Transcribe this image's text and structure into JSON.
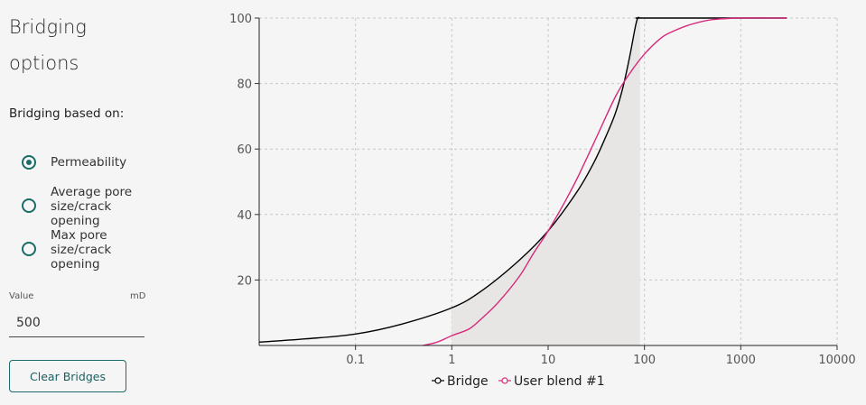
{
  "sidebar": {
    "title_line1": "Bridging",
    "title_line2": "options",
    "subtitle": "Bridging based on:",
    "options": [
      {
        "line1": "Permeability",
        "line2": "",
        "line3": "",
        "checked": true
      },
      {
        "line1": "Average pore",
        "line2": "size/crack",
        "line3": "opening",
        "checked": false
      },
      {
        "line1": "Max pore",
        "line2": "size/crack",
        "line3": "opening",
        "checked": false
      }
    ],
    "value_label": "Value",
    "unit_label": "mD",
    "value": "500",
    "clear_button": "Clear Bridges"
  },
  "colors": {
    "accent": "#1b6b6b",
    "bridge": "#000000",
    "user_blend": "#d6287a",
    "shade": "#e8e6e4"
  },
  "chart_data": {
    "type": "line",
    "x_scale": "log",
    "xlim": [
      0.01,
      10000
    ],
    "ylim": [
      0,
      100
    ],
    "x_ticks": [
      0.1,
      1,
      10,
      100,
      1000,
      10000
    ],
    "x_tick_labels": [
      "0.1",
      "1",
      "10",
      "100",
      "1000",
      "10000"
    ],
    "y_ticks": [
      20,
      40,
      60,
      80,
      100
    ],
    "y_tick_labels": [
      "20",
      "40",
      "60",
      "80",
      "100"
    ],
    "grid": true,
    "legend_position": "bottom-center",
    "shaded_x_range": [
      1,
      90
    ],
    "series": [
      {
        "name": "Bridge",
        "color": "#000000",
        "x": [
          0.01,
          0.03,
          0.1,
          0.3,
          1,
          2,
          5,
          10,
          20,
          30,
          40,
          50,
          60,
          70,
          80,
          85,
          90,
          100,
          1000,
          3000
        ],
        "y": [
          1,
          2,
          3.5,
          6.5,
          11.5,
          16.5,
          26,
          35,
          47,
          56,
          64,
          71,
          79,
          88,
          97,
          100,
          100,
          100,
          100,
          100
        ]
      },
      {
        "name": "User blend #1",
        "color": "#d6287a",
        "x": [
          0.5,
          0.7,
          1,
          1.5,
          2,
          3,
          5,
          7,
          10,
          15,
          20,
          30,
          50,
          70,
          100,
          150,
          200,
          300,
          500,
          1000,
          3000
        ],
        "y": [
          0,
          1,
          3,
          5,
          8,
          13,
          21,
          28,
          35,
          44,
          51,
          62,
          76,
          83,
          89,
          94,
          96,
          98,
          99.5,
          100,
          100
        ]
      }
    ]
  }
}
